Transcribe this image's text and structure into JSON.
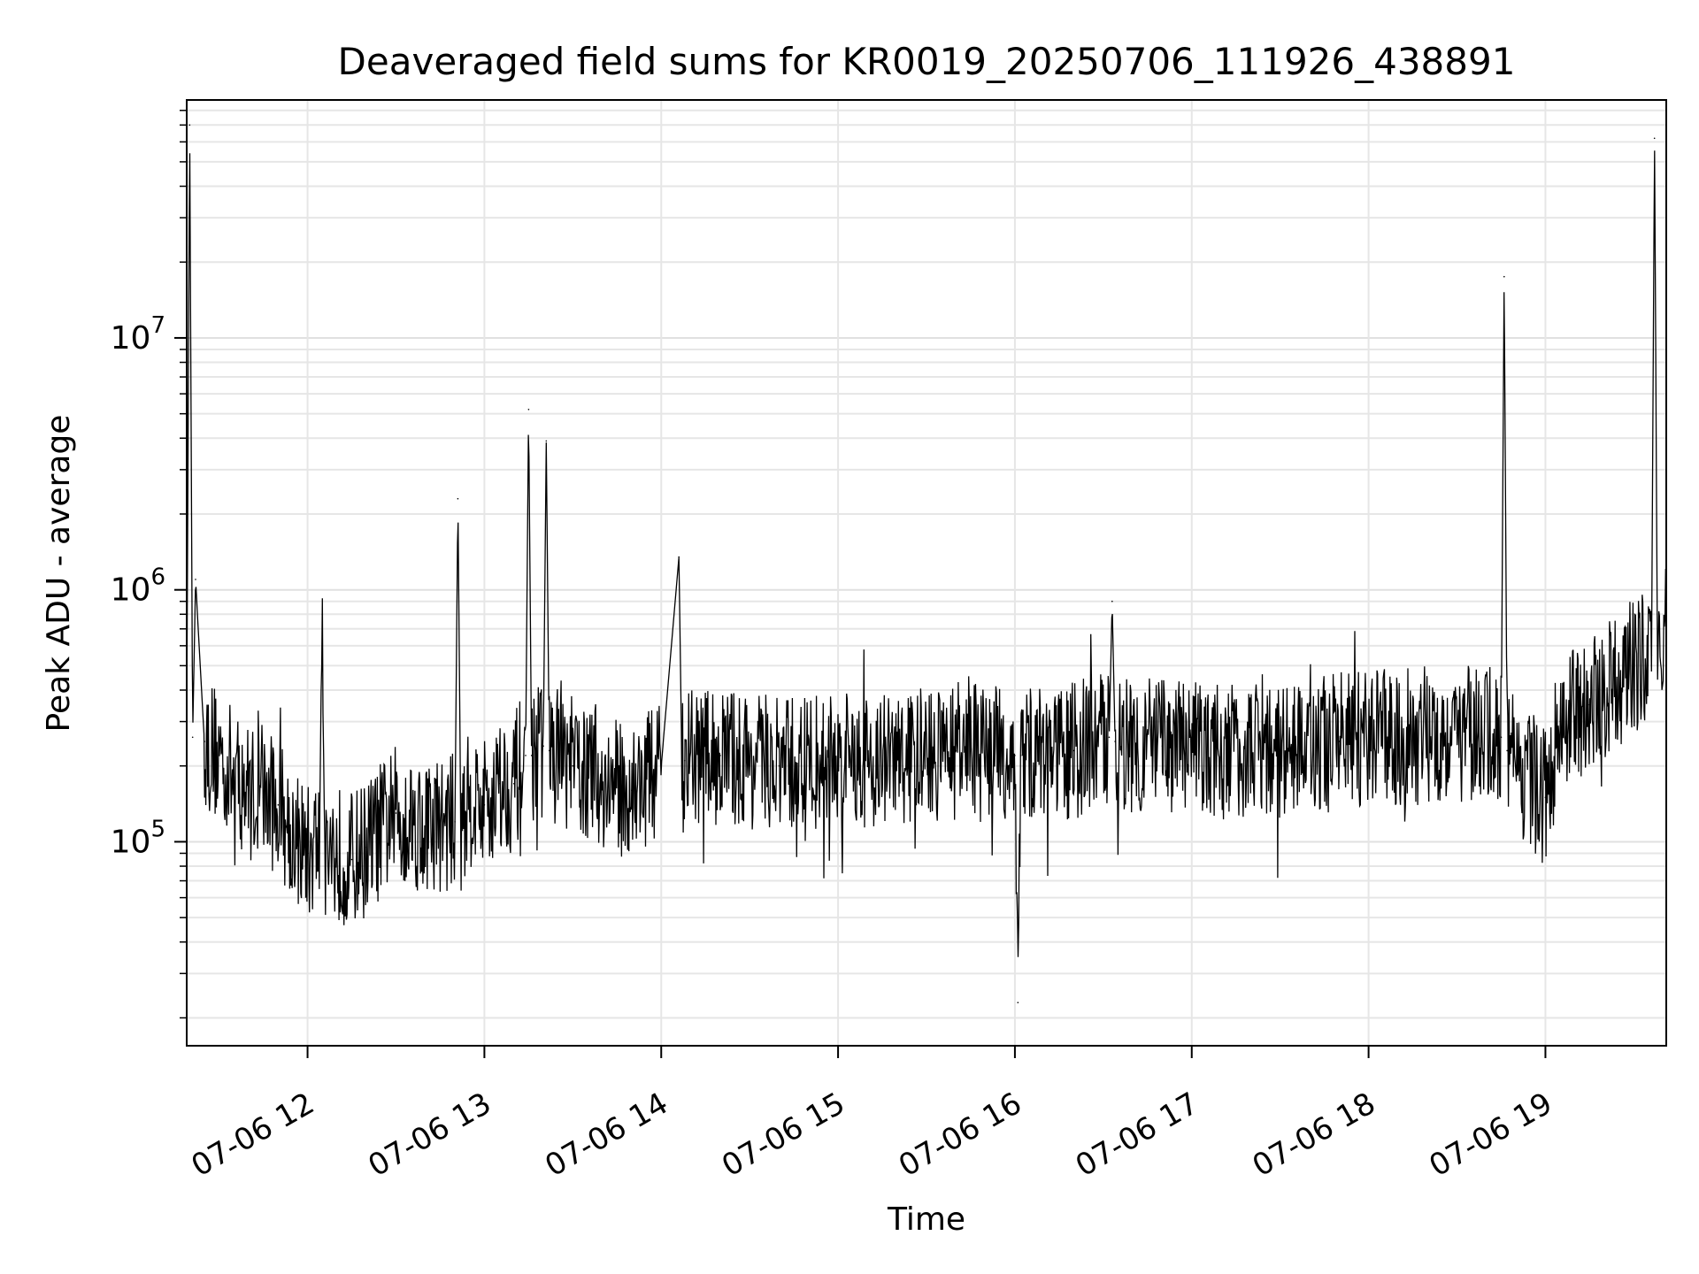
{
  "chart_data": {
    "type": "line",
    "title": "Deaveraged field sums for KR0019_20250706_111926_438891",
    "xlabel": "Time",
    "ylabel": "Peak ADU - average",
    "xlim": [
      "2025-07-06T11:19",
      "2025-07-06T19:41"
    ],
    "ylim": [
      15500,
      88000000
    ],
    "yscale": "log",
    "grid": true,
    "line_color": "#000000",
    "x_ticks": [
      {
        "value": "2025-07-06T12:00",
        "label": "07-06 12"
      },
      {
        "value": "2025-07-06T13:00",
        "label": "07-06 13"
      },
      {
        "value": "2025-07-06T14:00",
        "label": "07-06 14"
      },
      {
        "value": "2025-07-06T15:00",
        "label": "07-06 15"
      },
      {
        "value": "2025-07-06T16:00",
        "label": "07-06 16"
      },
      {
        "value": "2025-07-06T17:00",
        "label": "07-06 17"
      },
      {
        "value": "2025-07-06T18:00",
        "label": "07-06 18"
      },
      {
        "value": "2025-07-06T19:00",
        "label": "07-06 19"
      }
    ],
    "y_ticks": [
      {
        "value": 100000,
        "base": "10",
        "exp": "5"
      },
      {
        "value": 1000000,
        "base": "10",
        "exp": "6"
      },
      {
        "value": 10000000,
        "base": "10",
        "exp": "7"
      }
    ],
    "series": [
      {
        "x": [
          "2025-07-06T11:19",
          "2025-07-06T11:20",
          "2025-07-06T11:21",
          "2025-07-06T11:22",
          "2025-07-06T11:25",
          "2025-07-06T11:30",
          "2025-07-06T11:35",
          "2025-07-06T11:40",
          "2025-07-06T11:45",
          "2025-07-06T11:50",
          "2025-07-06T11:55",
          "2025-07-06T12:00",
          "2025-07-06T12:04",
          "2025-07-06T12:05",
          "2025-07-06T12:06",
          "2025-07-06T12:10",
          "2025-07-06T12:15",
          "2025-07-06T12:20",
          "2025-07-06T12:30",
          "2025-07-06T12:40",
          "2025-07-06T12:50",
          "2025-07-06T12:51",
          "2025-07-06T12:52",
          "2025-07-06T12:55",
          "2025-07-06T13:00",
          "2025-07-06T13:05",
          "2025-07-06T13:10",
          "2025-07-06T13:14",
          "2025-07-06T13:15",
          "2025-07-06T13:16",
          "2025-07-06T13:20",
          "2025-07-06T13:21",
          "2025-07-06T13:22",
          "2025-07-06T13:30",
          "2025-07-06T13:40",
          "2025-07-06T13:50",
          "2025-07-06T14:00",
          "2025-07-06T14:06",
          "2025-07-06T14:07",
          "2025-07-06T14:08",
          "2025-07-06T14:20",
          "2025-07-06T14:40",
          "2025-07-06T15:00",
          "2025-07-06T15:20",
          "2025-07-06T15:40",
          "2025-07-06T16:00",
          "2025-07-06T16:01",
          "2025-07-06T16:02",
          "2025-07-06T16:20",
          "2025-07-06T16:32",
          "2025-07-06T16:33",
          "2025-07-06T16:34",
          "2025-07-06T16:50",
          "2025-07-06T17:10",
          "2025-07-06T17:30",
          "2025-07-06T17:50",
          "2025-07-06T18:10",
          "2025-07-06T18:30",
          "2025-07-06T18:45",
          "2025-07-06T18:46",
          "2025-07-06T18:47",
          "2025-07-06T19:00",
          "2025-07-06T19:05",
          "2025-07-06T19:15",
          "2025-07-06T19:30",
          "2025-07-06T19:36",
          "2025-07-06T19:37",
          "2025-07-06T19:38",
          "2025-07-06T19:41"
        ],
        "y": [
          300000,
          70000000,
          260000,
          1100000,
          250000,
          220000,
          180000,
          160000,
          150000,
          140000,
          110000,
          90000,
          100000,
          800000,
          95000,
          90000,
          85000,
          95000,
          130000,
          115000,
          120000,
          2300000,
          110000,
          150000,
          140000,
          170000,
          170000,
          220000,
          5200000,
          220000,
          240000,
          3900000,
          230000,
          200000,
          170000,
          160000,
          200000,
          1350000,
          200000,
          210000,
          220000,
          200000,
          210000,
          210000,
          230000,
          220000,
          23000,
          220000,
          230000,
          260000,
          900000,
          250000,
          240000,
          230000,
          230000,
          250000,
          260000,
          270000,
          260000,
          17500000,
          230000,
          150000,
          300000,
          350000,
          500000,
          550000,
          62000000,
          600000,
          650000
        ]
      }
    ]
  }
}
